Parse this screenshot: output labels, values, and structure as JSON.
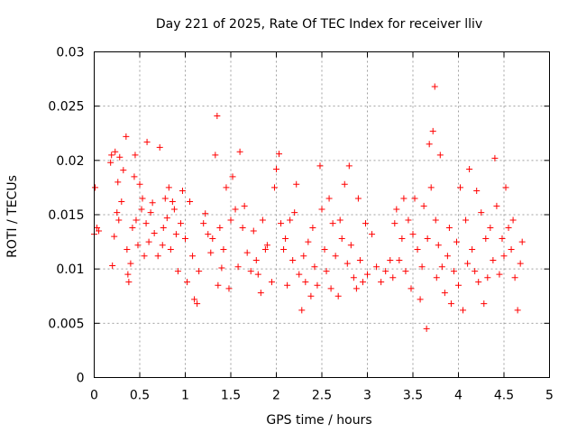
{
  "chart_data": {
    "type": "scatter",
    "title": "Day 221 of 2025, Rate Of TEC Index for receiver lliv",
    "xlabel": "GPS time / hours",
    "ylabel": "ROTI / TECUs",
    "xlim": [
      0,
      5
    ],
    "ylim": [
      0,
      0.03
    ],
    "xticks": [
      0,
      0.5,
      1,
      1.5,
      2,
      2.5,
      3,
      3.5,
      4,
      4.5,
      5
    ],
    "xtick_labels": [
      "0",
      "0.5",
      "1",
      "1.5",
      "2",
      "2.5",
      "3",
      "3.5",
      "4",
      "4.5",
      "5"
    ],
    "yticks": [
      0,
      0.005,
      0.01,
      0.015,
      0.02,
      0.025,
      0.03
    ],
    "ytick_labels": [
      "0",
      "0.005",
      "0.01",
      "0.015",
      "0.02",
      "0.025",
      "0.03"
    ],
    "grid": true,
    "marker": "+",
    "color": "#ff0000",
    "series": [
      {
        "name": "ROTI",
        "x": [
          0.0,
          0.01,
          0.03,
          0.05,
          0.18,
          0.19,
          0.2,
          0.22,
          0.23,
          0.25,
          0.26,
          0.27,
          0.28,
          0.3,
          0.32,
          0.35,
          0.36,
          0.37,
          0.38,
          0.4,
          0.42,
          0.44,
          0.45,
          0.46,
          0.48,
          0.5,
          0.52,
          0.53,
          0.55,
          0.57,
          0.58,
          0.6,
          0.62,
          0.64,
          0.66,
          0.7,
          0.72,
          0.75,
          0.76,
          0.78,
          0.8,
          0.82,
          0.84,
          0.86,
          0.88,
          0.9,
          0.92,
          0.95,
          0.97,
          1.0,
          1.02,
          1.05,
          1.08,
          1.1,
          1.13,
          1.15,
          1.2,
          1.22,
          1.25,
          1.28,
          1.3,
          1.33,
          1.35,
          1.36,
          1.38,
          1.4,
          1.42,
          1.45,
          1.48,
          1.5,
          1.52,
          1.55,
          1.58,
          1.6,
          1.63,
          1.65,
          1.68,
          1.72,
          1.75,
          1.78,
          1.8,
          1.83,
          1.85,
          1.88,
          1.9,
          1.95,
          1.98,
          2.0,
          2.03,
          2.05,
          2.08,
          2.1,
          2.12,
          2.15,
          2.18,
          2.2,
          2.22,
          2.25,
          2.28,
          2.3,
          2.32,
          2.35,
          2.38,
          2.4,
          2.42,
          2.45,
          2.48,
          2.5,
          2.53,
          2.55,
          2.58,
          2.6,
          2.62,
          2.65,
          2.68,
          2.7,
          2.72,
          2.75,
          2.78,
          2.8,
          2.82,
          2.85,
          2.88,
          2.9,
          2.92,
          2.95,
          2.98,
          3.0,
          3.05,
          3.1,
          3.15,
          3.2,
          3.25,
          3.28,
          3.3,
          3.32,
          3.35,
          3.38,
          3.4,
          3.42,
          3.45,
          3.48,
          3.5,
          3.52,
          3.55,
          3.58,
          3.6,
          3.62,
          3.65,
          3.66,
          3.68,
          3.7,
          3.72,
          3.74,
          3.75,
          3.76,
          3.78,
          3.8,
          3.82,
          3.85,
          3.88,
          3.9,
          3.92,
          3.95,
          3.98,
          4.0,
          4.02,
          4.05,
          4.08,
          4.1,
          4.12,
          4.15,
          4.18,
          4.2,
          4.22,
          4.25,
          4.28,
          4.3,
          4.32,
          4.35,
          4.38,
          4.4,
          4.42,
          4.45,
          4.48,
          4.5,
          4.52,
          4.55,
          4.58,
          4.6,
          4.62,
          4.65,
          4.68,
          4.7
        ],
        "y": [
          0.0132,
          0.0175,
          0.0138,
          0.0135,
          0.0198,
          0.0205,
          0.0103,
          0.013,
          0.0208,
          0.0152,
          0.018,
          0.0145,
          0.0203,
          0.0162,
          0.0191,
          0.0222,
          0.0118,
          0.0095,
          0.0088,
          0.0105,
          0.0138,
          0.0185,
          0.0205,
          0.0145,
          0.0122,
          0.0178,
          0.0155,
          0.0165,
          0.0112,
          0.0142,
          0.0217,
          0.0125,
          0.0152,
          0.0161,
          0.0133,
          0.0112,
          0.0212,
          0.0122,
          0.0138,
          0.0165,
          0.0147,
          0.0175,
          0.0118,
          0.0162,
          0.0155,
          0.0132,
          0.0098,
          0.0142,
          0.0172,
          0.0128,
          0.0088,
          0.0162,
          0.0112,
          0.0072,
          0.0068,
          0.0098,
          0.0142,
          0.0151,
          0.0132,
          0.0115,
          0.0128,
          0.0205,
          0.0241,
          0.0085,
          0.0138,
          0.0101,
          0.0118,
          0.0175,
          0.0082,
          0.0145,
          0.0185,
          0.0155,
          0.0102,
          0.0208,
          0.0138,
          0.0158,
          0.0115,
          0.0098,
          0.0135,
          0.0108,
          0.0095,
          0.0078,
          0.0145,
          0.0118,
          0.0122,
          0.0088,
          0.0175,
          0.0192,
          0.0206,
          0.0142,
          0.0118,
          0.0128,
          0.0085,
          0.0145,
          0.0108,
          0.0152,
          0.0178,
          0.0095,
          0.0062,
          0.0112,
          0.0088,
          0.0125,
          0.0075,
          0.0138,
          0.0102,
          0.0085,
          0.0195,
          0.0155,
          0.0118,
          0.0098,
          0.0165,
          0.0082,
          0.0142,
          0.0112,
          0.0075,
          0.0145,
          0.0128,
          0.0178,
          0.0105,
          0.0195,
          0.0122,
          0.0092,
          0.0082,
          0.0165,
          0.0108,
          0.0088,
          0.0142,
          0.0095,
          0.0132,
          0.0102,
          0.0088,
          0.0098,
          0.0108,
          0.0092,
          0.0142,
          0.0155,
          0.0108,
          0.0128,
          0.0165,
          0.0098,
          0.0145,
          0.0082,
          0.0132,
          0.0165,
          0.0118,
          0.0072,
          0.0102,
          0.0158,
          0.0045,
          0.0128,
          0.0215,
          0.0175,
          0.0227,
          0.0268,
          0.0145,
          0.0092,
          0.0122,
          0.0205,
          0.0102,
          0.0078,
          0.0112,
          0.0138,
          0.0068,
          0.0098,
          0.0125,
          0.0085,
          0.0175,
          0.0062,
          0.0145,
          0.0105,
          0.0192,
          0.0118,
          0.0098,
          0.0172,
          0.0088,
          0.0152,
          0.0068,
          0.0128,
          0.0092,
          0.0138,
          0.0108,
          0.0202,
          0.0158,
          0.0095,
          0.0128,
          0.0112,
          0.0175,
          0.0138,
          0.0118,
          0.0145,
          0.0092,
          0.0062,
          0.0105,
          0.0125
        ]
      }
    ]
  }
}
